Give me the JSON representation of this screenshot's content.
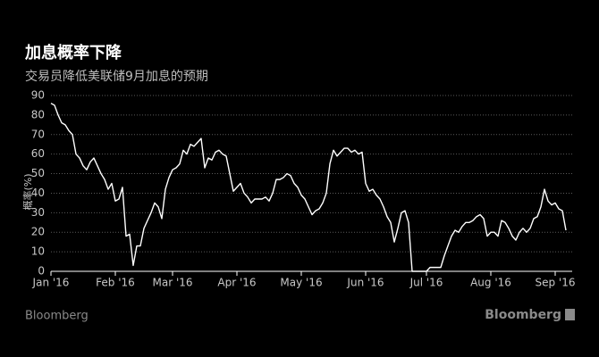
{
  "chart_data": {
    "type": "line",
    "title": "加息概率下降",
    "subtitle": "交易员降低美联储9月加息的预期",
    "y_label": "概率(%)",
    "source": "Bloomberg",
    "logo": "Bloomberg",
    "color": "#ffffff",
    "grid": true,
    "ylim": [
      0,
      90
    ],
    "yticks": [
      0,
      10,
      20,
      30,
      40,
      50,
      60,
      70,
      80,
      90
    ],
    "categories": [
      "Jan '16",
      null,
      null,
      null,
      null,
      null,
      null,
      null,
      null,
      null,
      null,
      null,
      null,
      null,
      null,
      null,
      null,
      null,
      "Feb '16",
      null,
      null,
      null,
      null,
      null,
      null,
      null,
      null,
      null,
      null,
      null,
      null,
      null,
      null,
      null,
      "Mar '16",
      null,
      null,
      null,
      null,
      null,
      null,
      null,
      null,
      null,
      null,
      null,
      null,
      null,
      null,
      null,
      null,
      null,
      "Apr '16",
      null,
      null,
      null,
      null,
      null,
      null,
      null,
      null,
      null,
      null,
      null,
      null,
      null,
      null,
      null,
      null,
      null,
      "May '16",
      null,
      null,
      null,
      null,
      null,
      null,
      null,
      null,
      null,
      null,
      null,
      null,
      null,
      null,
      null,
      null,
      null,
      "Jun '16",
      null,
      null,
      null,
      null,
      null,
      null,
      null,
      null,
      null,
      null,
      null,
      null,
      null,
      null,
      null,
      null,
      "Jul '16",
      null,
      null,
      null,
      null,
      null,
      null,
      null,
      null,
      null,
      null,
      null,
      null,
      null,
      null,
      null,
      null,
      null,
      "Aug '16",
      null,
      null,
      null,
      null,
      null,
      null,
      null,
      null,
      null,
      null,
      null,
      null,
      null,
      null,
      null,
      null,
      null,
      "Sep '16",
      null,
      null,
      null
    ],
    "values": [
      86,
      85,
      80,
      76,
      75,
      72,
      70,
      60,
      58,
      54,
      52,
      56,
      58,
      54,
      50,
      47,
      42,
      45,
      36,
      37,
      43,
      18,
      19,
      3,
      13,
      13,
      22,
      26,
      30,
      35,
      33,
      27,
      42,
      48,
      52,
      53,
      55,
      62,
      60,
      65,
      64,
      66,
      68,
      53,
      58,
      57,
      61,
      62,
      60,
      59,
      50,
      41,
      43,
      45,
      40,
      38,
      35,
      37,
      37,
      37,
      38,
      36,
      40,
      47,
      47,
      48,
      50,
      49,
      45,
      43,
      39,
      37,
      33,
      29,
      31,
      32,
      35,
      40,
      55,
      62,
      59,
      61,
      63,
      63,
      61,
      62,
      60,
      61,
      45,
      41,
      42,
      39,
      37,
      33,
      28,
      25,
      15,
      22,
      30,
      31,
      25,
      0,
      0,
      0,
      0,
      0,
      2,
      2,
      2,
      2,
      8,
      13,
      18,
      21,
      20,
      23,
      25,
      25,
      26,
      28,
      29,
      27,
      18,
      20,
      20,
      18,
      26,
      25,
      22,
      18,
      16,
      20,
      22,
      20,
      22,
      27,
      28,
      33,
      42,
      36,
      34,
      35,
      32,
      31,
      21
    ]
  }
}
